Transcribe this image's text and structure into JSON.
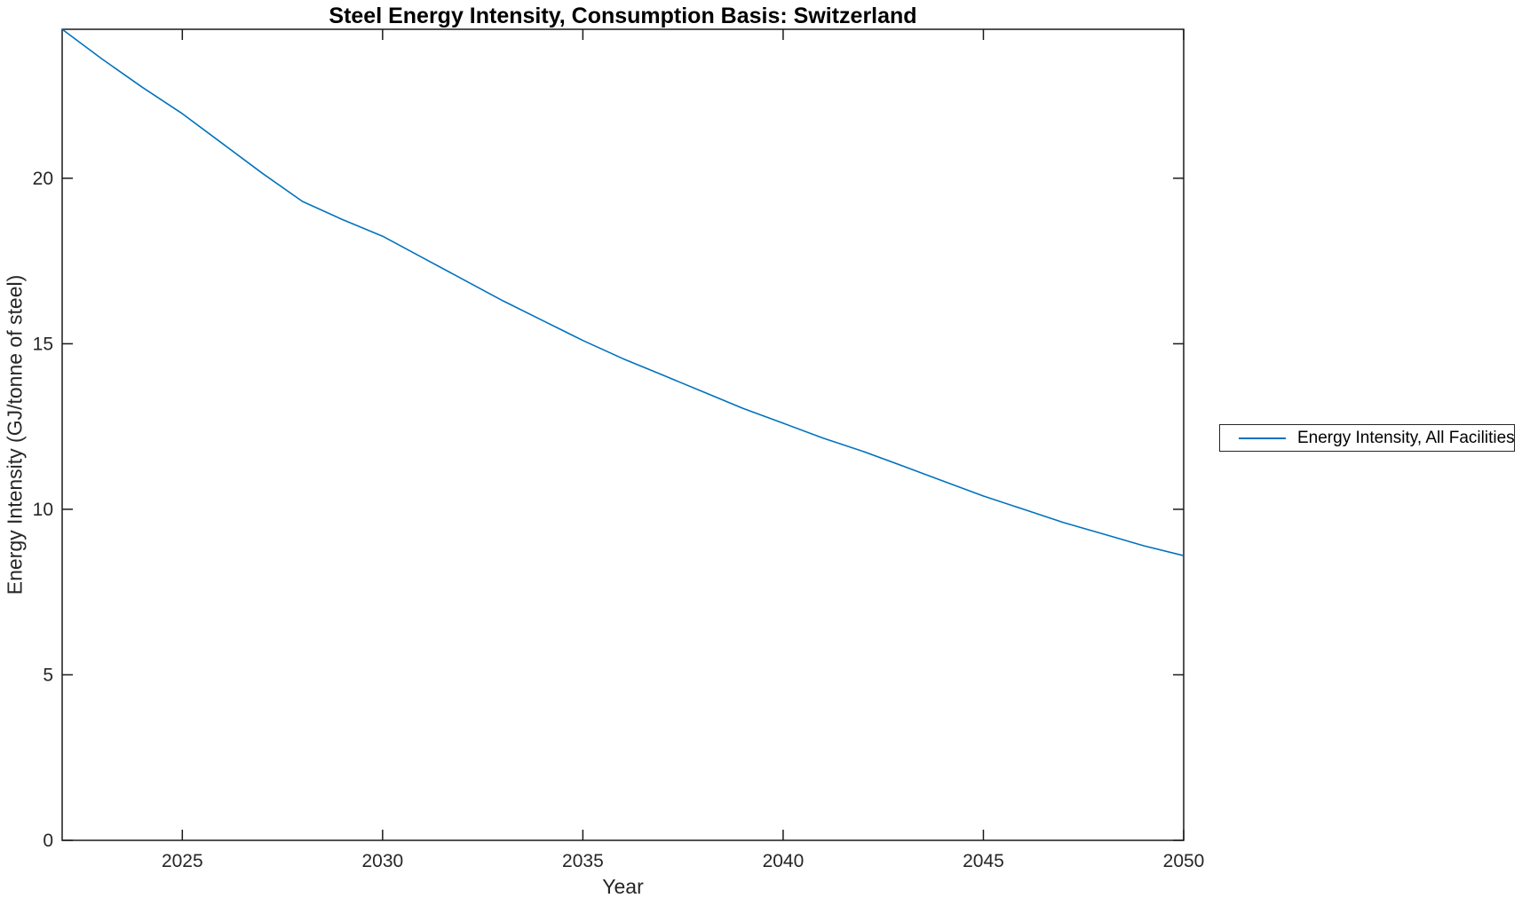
{
  "figure": {
    "background": "#ffffff"
  },
  "colors": {
    "line": "#0072BD",
    "axis": "#1a1a1a",
    "tick_text": "#262626"
  },
  "chart_data": {
    "type": "line",
    "title": "Steel Energy Intensity, Consumption Basis: Switzerland",
    "xlabel": "Year",
    "ylabel": "Energy Intensity (GJ/tonne of steel)",
    "xlim": [
      2022,
      2050
    ],
    "ylim": [
      0,
      24.5
    ],
    "x_ticks": [
      2025,
      2030,
      2035,
      2040,
      2045,
      2050
    ],
    "y_ticks": [
      0,
      5,
      10,
      15,
      20
    ],
    "grid": false,
    "box": true,
    "tick_direction": "in",
    "legend_position": "outside-right-middle",
    "series": [
      {
        "name": "Energy Intensity, All Facilities",
        "color": "#0072BD",
        "x": [
          2022,
          2023,
          2024,
          2025,
          2026,
          2027,
          2028,
          2029,
          2030,
          2031,
          2032,
          2033,
          2034,
          2035,
          2036,
          2037,
          2038,
          2039,
          2040,
          2041,
          2042,
          2043,
          2044,
          2045,
          2046,
          2047,
          2048,
          2049,
          2050
        ],
        "y": [
          24.5,
          23.6,
          22.75,
          21.95,
          21.05,
          20.15,
          19.3,
          18.75,
          18.25,
          17.6,
          16.95,
          16.3,
          15.7,
          15.1,
          14.55,
          14.05,
          13.55,
          13.05,
          12.6,
          12.15,
          11.75,
          11.3,
          10.85,
          10.4,
          10.0,
          9.6,
          9.25,
          8.9,
          8.6
        ]
      }
    ]
  }
}
